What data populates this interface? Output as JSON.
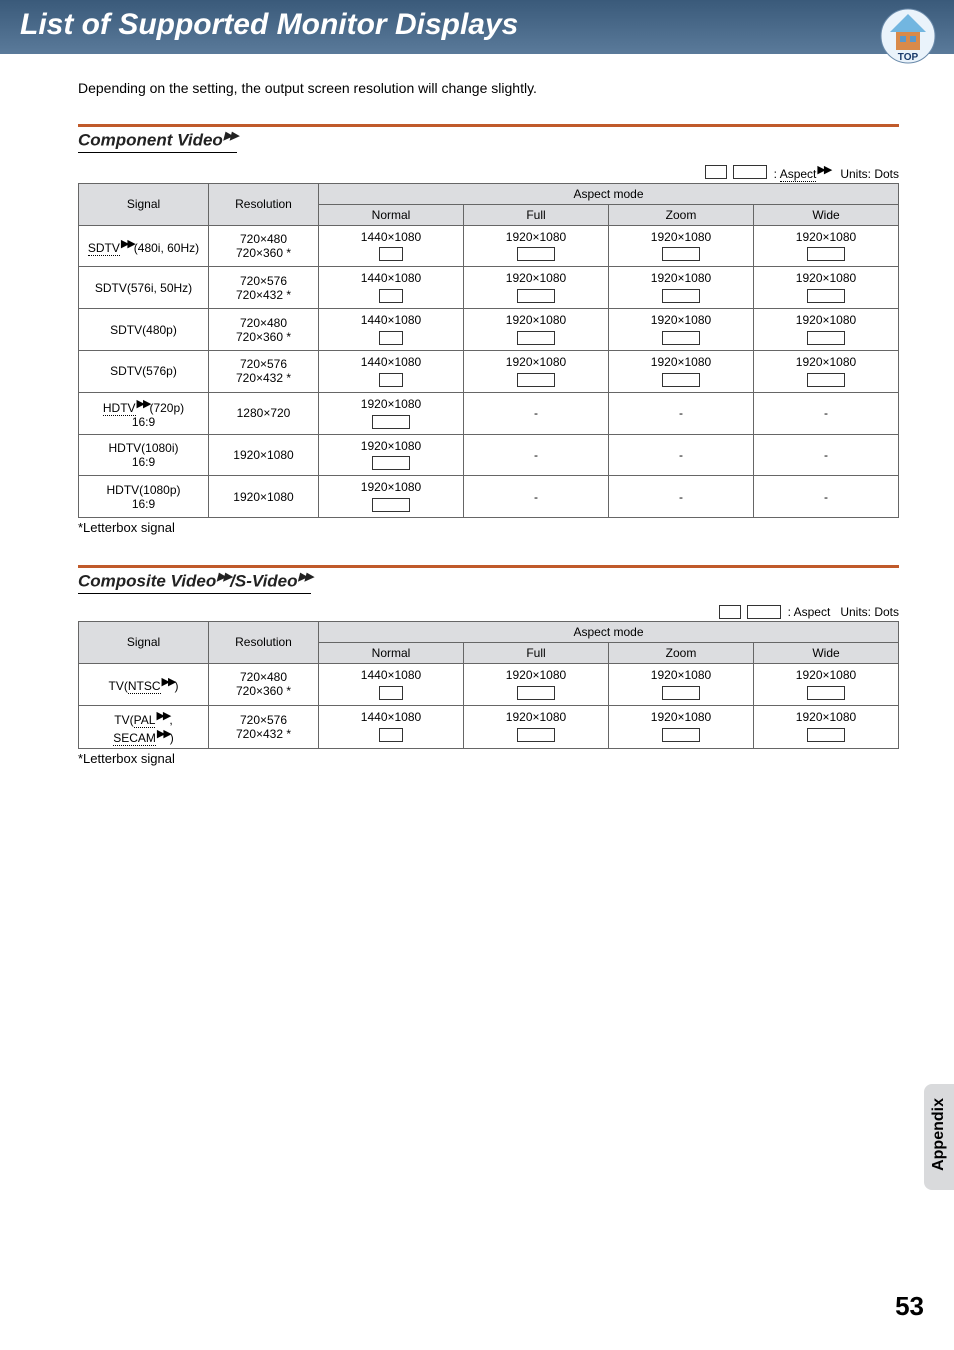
{
  "header": {
    "title": "List of Supported Monitor Displays",
    "top_label": "TOP"
  },
  "intro": "Depending on the setting, the output screen resolution will change slightly.",
  "legend": {
    "aspect_label": "Aspect",
    "units": "Units: Dots"
  },
  "columns": {
    "signal": "Signal",
    "resolution": "Resolution",
    "aspect_mode": "Aspect mode",
    "normal": "Normal",
    "full": "Full",
    "zoom": "Zoom",
    "wide": "Wide"
  },
  "ffwd_glyph": "▶▶",
  "section1": {
    "title_prefix": "Component Video",
    "rows": [
      {
        "signal_prefix_link": "SDTV",
        "signal_suffix": "(480i, 60Hz)",
        "resolution_lines": [
          "720×480",
          "720×360 *"
        ],
        "normal": {
          "res": "1440×1080",
          "shape": "43"
        },
        "full": {
          "res": "1920×1080",
          "shape": "169"
        },
        "zoom": {
          "res": "1920×1080",
          "shape": "169"
        },
        "wide": {
          "res": "1920×1080",
          "shape": "169"
        }
      },
      {
        "signal_plain": "SDTV(576i, 50Hz)",
        "resolution_lines": [
          "720×576",
          "720×432 *"
        ],
        "normal": {
          "res": "1440×1080",
          "shape": "43"
        },
        "full": {
          "res": "1920×1080",
          "shape": "169"
        },
        "zoom": {
          "res": "1920×1080",
          "shape": "169"
        },
        "wide": {
          "res": "1920×1080",
          "shape": "169"
        }
      },
      {
        "signal_plain": "SDTV(480p)",
        "resolution_lines": [
          "720×480",
          "720×360 *"
        ],
        "normal": {
          "res": "1440×1080",
          "shape": "43"
        },
        "full": {
          "res": "1920×1080",
          "shape": "169"
        },
        "zoom": {
          "res": "1920×1080",
          "shape": "169"
        },
        "wide": {
          "res": "1920×1080",
          "shape": "169"
        }
      },
      {
        "signal_plain": "SDTV(576p)",
        "resolution_lines": [
          "720×576",
          "720×432 *"
        ],
        "normal": {
          "res": "1440×1080",
          "shape": "43"
        },
        "full": {
          "res": "1920×1080",
          "shape": "169"
        },
        "zoom": {
          "res": "1920×1080",
          "shape": "169"
        },
        "wide": {
          "res": "1920×1080",
          "shape": "169"
        }
      },
      {
        "signal_prefix_link": "HDTV",
        "signal_suffix": "(720p) 16:9",
        "resolution_lines": [
          "1280×720"
        ],
        "normal": {
          "res": "1920×1080",
          "shape": "169"
        },
        "full": {
          "dash": "-"
        },
        "zoom": {
          "dash": "-"
        },
        "wide": {
          "dash": "-"
        }
      },
      {
        "signal_plain": "HDTV(1080i) 16:9",
        "resolution_lines": [
          "1920×1080"
        ],
        "normal": {
          "res": "1920×1080",
          "shape": "169"
        },
        "full": {
          "dash": "-"
        },
        "zoom": {
          "dash": "-"
        },
        "wide": {
          "dash": "-"
        }
      },
      {
        "signal_plain": "HDTV(1080p) 16:9",
        "resolution_lines": [
          "1920×1080"
        ],
        "normal": {
          "res": "1920×1080",
          "shape": "169"
        },
        "full": {
          "dash": "-"
        },
        "zoom": {
          "dash": "-"
        },
        "wide": {
          "dash": "-"
        }
      }
    ]
  },
  "section2": {
    "title_prefix": "Composite Video",
    "title_mid": "/S-Video",
    "rows": [
      {
        "signal_pre": "TV(",
        "signal_link": "NTSC",
        "signal_post": ")",
        "resolution_lines": [
          "720×480",
          "720×360 *"
        ],
        "normal": {
          "res": "1440×1080",
          "shape": "43"
        },
        "full": {
          "res": "1920×1080",
          "shape": "169"
        },
        "zoom": {
          "res": "1920×1080",
          "shape": "169"
        },
        "wide": {
          "res": "1920×1080",
          "shape": "169"
        }
      },
      {
        "signal_pre": "TV(",
        "signal_link": "PAL",
        "signal_mid": ", ",
        "signal_link2": "SECAM",
        "signal_post": ")",
        "resolution_lines": [
          "720×576",
          "720×432 *"
        ],
        "normal": {
          "res": "1440×1080",
          "shape": "43"
        },
        "full": {
          "res": "1920×1080",
          "shape": "169"
        },
        "zoom": {
          "res": "1920×1080",
          "shape": "169"
        },
        "wide": {
          "res": "1920×1080",
          "shape": "169"
        }
      }
    ]
  },
  "footnote": "*Letterbox signal",
  "appendix": "Appendix",
  "page_number": "53",
  "colors": {
    "section_rule": "#c05a2a",
    "header_grad_top": "#3a5a7a",
    "header_grad_bot": "#5a7a9a",
    "th_bg": "#dcdde0",
    "tab_bg": "#d9dadc"
  }
}
